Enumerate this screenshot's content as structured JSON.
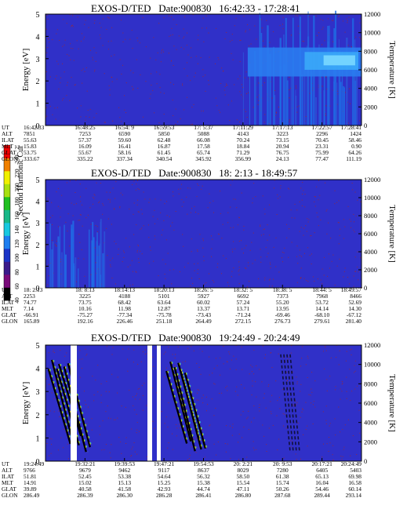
{
  "chart_data": [
    {
      "type": "heatmap",
      "title": "EXOS-D/TED",
      "date_label": "Date:900830",
      "time_range": "16:42:33 - 17:28:41",
      "ylabel": "Energy [eV]",
      "ylim": [
        0,
        5
      ],
      "y_ticks": [
        "0",
        "1",
        "2",
        "3",
        "4",
        "5"
      ],
      "y2label": "Temperature [K]",
      "y2lim": [
        0,
        12000
      ],
      "y2_ticks": [
        "0",
        "2000",
        "4000",
        "6000",
        "8000",
        "10000",
        "12000"
      ],
      "rows": [
        {
          "label": "UT",
          "values": [
            "16:42:33",
            "16:48:25",
            "16:54: 9",
            "16:59:53",
            "17: 5:37",
            "17:11:29",
            "17:17:13",
            "17:22:57",
            "17:28:41"
          ]
        },
        {
          "label": "ALT",
          "values": [
            "7851",
            "7253",
            "6590",
            "5850",
            "5088",
            "4143",
            "3223",
            "2296",
            "1424"
          ]
        },
        {
          "label": "ILAT",
          "values": [
            "55.63",
            "57.37",
            "59.60",
            "62.48",
            "66.08",
            "70.24",
            "73.15",
            "70.45",
            "58.46"
          ]
        },
        {
          "label": "MLT",
          "values": [
            "15.83",
            "16.09",
            "16.41",
            "16.87",
            "17.58",
            "18.84",
            "20.94",
            "23.31",
            "0.90"
          ]
        },
        {
          "label": "GLAT",
          "values": [
            "53.75",
            "55.67",
            "58.16",
            "61.45",
            "65.74",
            "71.29",
            "76.75",
            "75.99",
            "64.26"
          ]
        },
        {
          "label": "GLON",
          "values": [
            "333.67",
            "335.22",
            "337.34",
            "340.54",
            "345.92",
            "356.99",
            "24.13",
            "77.47",
            "111.19"
          ]
        }
      ],
      "features": {
        "emission_band_energy_ev": [
          2.2,
          3.5
        ],
        "emission_band_ut": [
          "17:11",
          "17:28"
        ]
      }
    },
    {
      "type": "heatmap",
      "title": "EXOS-D/TED",
      "date_label": "Date:900830",
      "time_range": "18: 2:13 - 18:49:57",
      "ylabel": "Energy [eV]",
      "ylim": [
        0,
        5
      ],
      "y_ticks": [
        "0",
        "1",
        "2",
        "3",
        "4",
        "5"
      ],
      "y2label": "Temperature [K]",
      "y2lim": [
        0,
        12000
      ],
      "y2_ticks": [
        "0",
        "2000",
        "4000",
        "6000",
        "8000",
        "10000",
        "12000"
      ],
      "rows": [
        {
          "label": "UT",
          "values": [
            "18: 2:13",
            "18: 8:13",
            "18:14:13",
            "18:20:13",
            "18:26: 5",
            "18:32: 5",
            "18:38: 5",
            "18:44: 5",
            "18:49:57"
          ]
        },
        {
          "label": "ALT",
          "values": [
            "2253",
            "3225",
            "4188",
            "5101",
            "5927",
            "6692",
            "7373",
            "7968",
            "8466"
          ]
        },
        {
          "label": "ILAT",
          "values": [
            "74.77",
            "73.75",
            "68.42",
            "63.64",
            "60.02",
            "57.24",
            "55.20",
            "53.72",
            "52.69"
          ]
        },
        {
          "label": "MLT",
          "values": [
            "7.14",
            "10.16",
            "11.98",
            "12.87",
            "13.37",
            "13.71",
            "13.95",
            "14.14",
            "14.30"
          ]
        },
        {
          "label": "GLAT",
          "values": [
            "-66.91",
            "-75.27",
            "-77.34",
            "-75.78",
            "-73.43",
            "-71.24",
            "-69.46",
            "-68.10",
            "-67.12"
          ]
        },
        {
          "label": "GLON",
          "values": [
            "165.89",
            "192.16",
            "226.46",
            "251.18",
            "264.49",
            "272.15",
            "276.73",
            "279.61",
            "281.40"
          ]
        }
      ]
    },
    {
      "type": "heatmap",
      "title": "EXOS-D/TED",
      "date_label": "Date:900830",
      "time_range": "19:24:49 - 20:24:49",
      "ylabel": "Energy [eV]",
      "ylim": [
        0,
        5
      ],
      "y_ticks": [
        "0",
        "1",
        "2",
        "3",
        "4",
        "5"
      ],
      "y2label": "Temperature [K]",
      "y2lim": [
        0,
        12000
      ],
      "y2_ticks": [
        "0",
        "2000",
        "4000",
        "6000",
        "8000",
        "10000",
        "12000"
      ],
      "rows": [
        {
          "label": "UT",
          "values": [
            "19:24:49",
            "19:32:21",
            "19:39:53",
            "19:47:21",
            "19:54:53",
            "20: 2:21",
            "20: 9:53",
            "20:17:21",
            "20:24:49"
          ]
        },
        {
          "label": "ALT",
          "values": [
            "9766",
            "9679",
            "9462",
            "9117",
            "8637",
            "8029",
            "7280",
            "6405",
            "5403"
          ]
        },
        {
          "label": "ILAT",
          "values": [
            "51.81",
            "52.45",
            "53.38",
            "54.64",
            "56.32",
            "58.50",
            "61.38",
            "65.13",
            "69.98"
          ]
        },
        {
          "label": "MLT",
          "values": [
            "14.91",
            "15.02",
            "15.13",
            "15.25",
            "15.38",
            "15.54",
            "15.74",
            "16.04",
            "16.58"
          ]
        },
        {
          "label": "GLAT",
          "values": [
            "39.89",
            "40.58",
            "41.58",
            "42.93",
            "44.74",
            "47.11",
            "50.26",
            "54.46",
            "60.14"
          ]
        },
        {
          "label": "GLON",
          "values": [
            "286.49",
            "286.39",
            "286.30",
            "286.28",
            "286.41",
            "286.80",
            "287.68",
            "289.44",
            "293.14"
          ]
        }
      ],
      "features": {
        "data_gaps_ut": [
          "19:30",
          "19:45"
        ],
        "striations": true
      }
    }
  ],
  "colorbar": {
    "label": "Second Harmonic Current",
    "ticks": [
      "40",
      "60",
      "80",
      "100",
      "120",
      "140",
      "160",
      "180",
      "200",
      "220",
      "240",
      "250"
    ],
    "colors": [
      "#000000",
      "#7a0a7a",
      "#3a1a8a",
      "#1a34c8",
      "#1e7ef0",
      "#18c8e0",
      "#18b888",
      "#20c020",
      "#a8e010",
      "#f0f000",
      "#f08000",
      "#f00000"
    ]
  },
  "background_color": "#3030c8",
  "noise_color": "#b02818"
}
